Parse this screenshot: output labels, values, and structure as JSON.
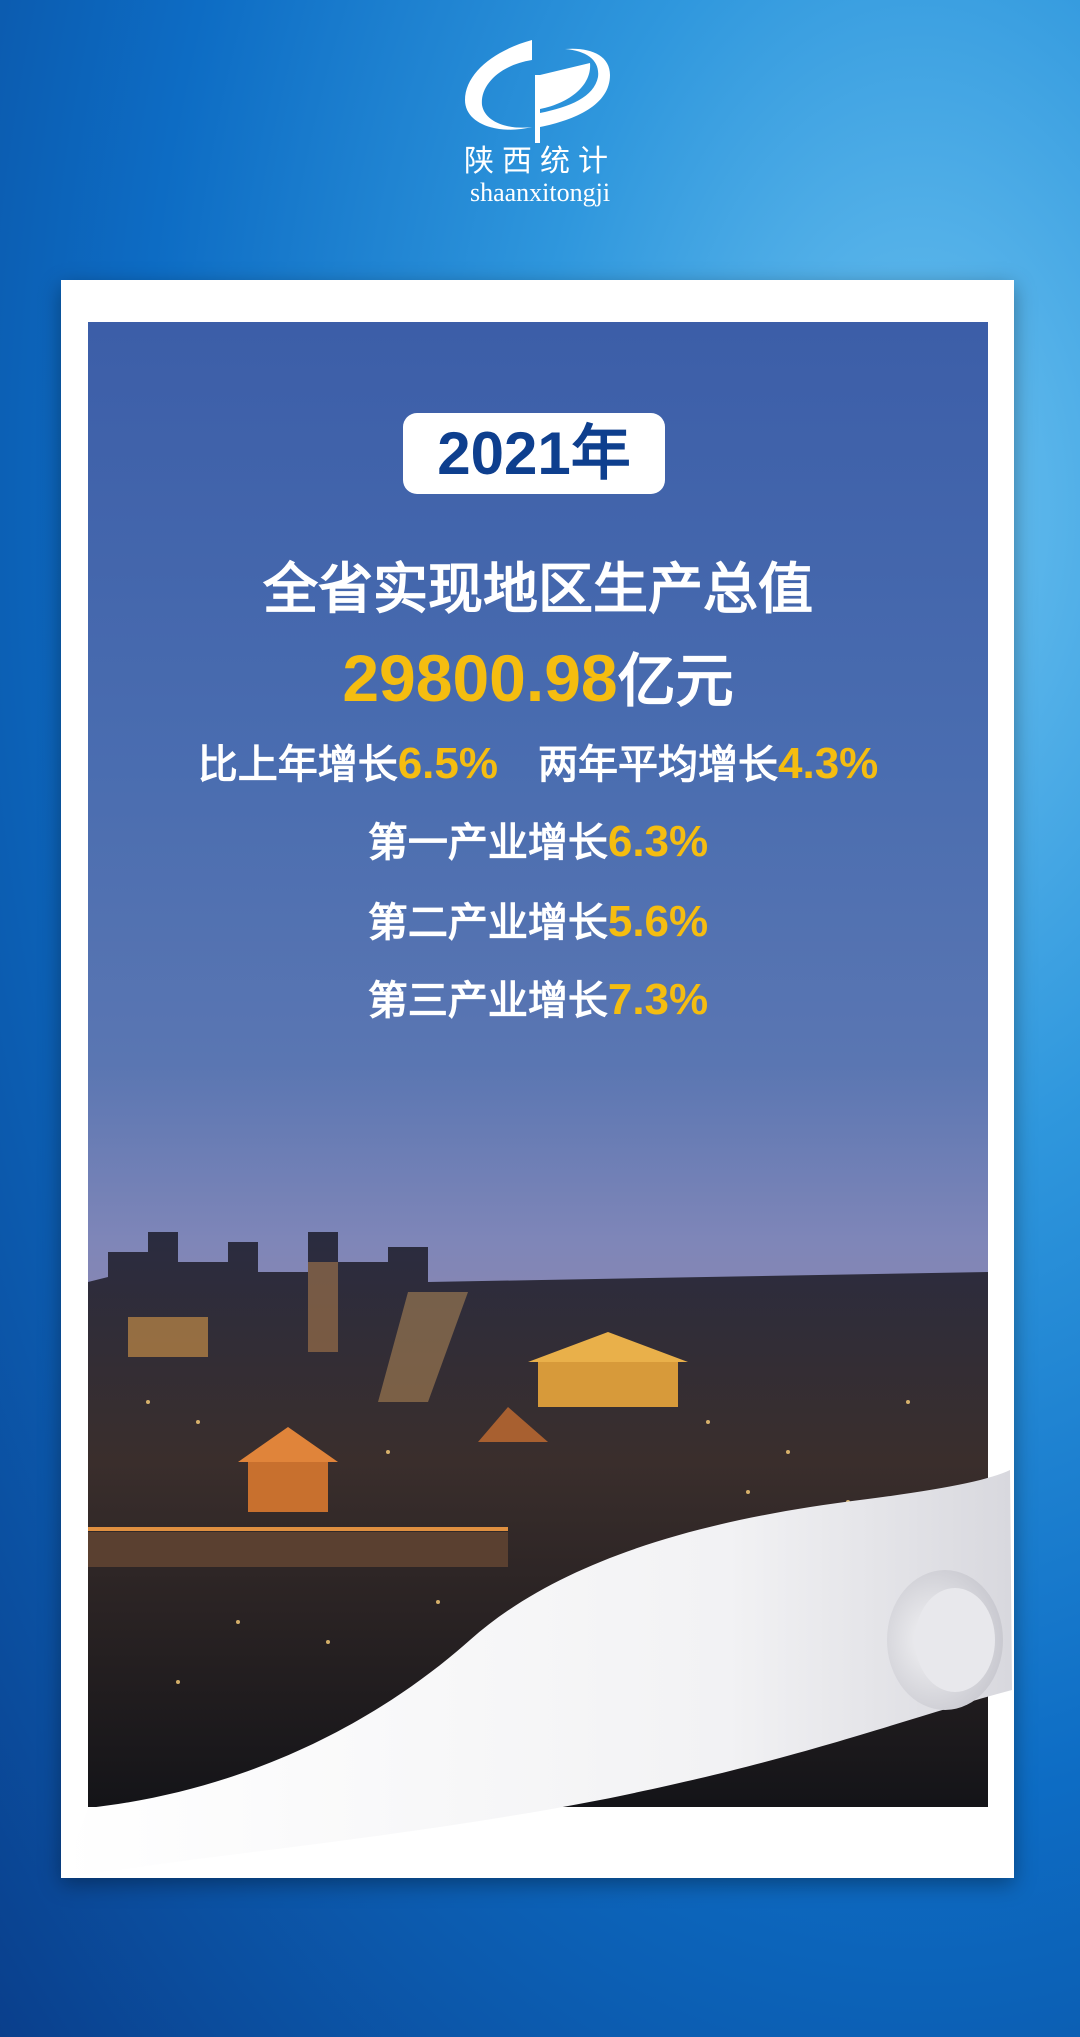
{
  "logo": {
    "cn": "陕西统计",
    "en": "shaanxitongji"
  },
  "poster": {
    "year": "2021年",
    "headline": "全省实现地区生产总值",
    "gdp_value": "29800.98",
    "gdp_unit": "亿元",
    "growth": [
      {
        "label": "比上年增长",
        "value": "6.5%"
      },
      {
        "label": "两年平均增长",
        "value": "4.3%"
      }
    ],
    "industries": [
      {
        "label": "第一产业增长",
        "value": "6.3%"
      },
      {
        "label": "第二产业增长",
        "value": "5.6%"
      },
      {
        "label": "第三产业增长",
        "value": "7.3%"
      }
    ]
  },
  "colors": {
    "accent": "#f5bd10",
    "year_text": "#0e3f8e",
    "background": "#0d6cc4"
  }
}
